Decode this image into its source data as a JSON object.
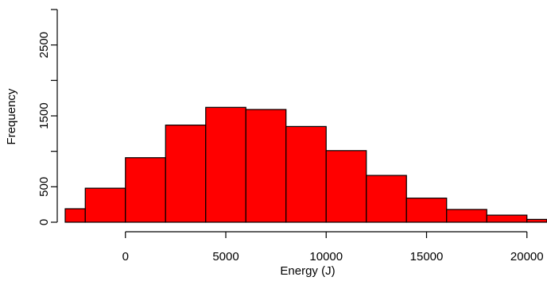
{
  "chart_data": {
    "type": "bar",
    "title": "",
    "xlabel": "Energy (J)",
    "ylabel": "Frequency",
    "bin_edges": [
      -3000,
      -2000,
      0,
      2000,
      4000,
      6000,
      8000,
      10000,
      12000,
      14000,
      16000,
      18000,
      20000,
      21000
    ],
    "values": [
      190,
      480,
      910,
      1370,
      1620,
      1590,
      1350,
      1010,
      660,
      340,
      180,
      100,
      40
    ],
    "xlim": [
      -3000,
      21000
    ],
    "ylim": [
      0,
      3000
    ],
    "x_ticks": [
      0,
      5000,
      10000,
      15000,
      20000
    ],
    "x_tick_labels": [
      "0",
      "5000",
      "10000",
      "15000",
      "20000"
    ],
    "y_ticks": [
      0,
      500,
      1000,
      1500,
      2000,
      2500,
      3000
    ],
    "y_tick_labels": [
      "0",
      "500",
      "1500",
      "2500"
    ],
    "y_tick_label_values": [
      0,
      500,
      1500,
      2500
    ],
    "bar_color": "#ff0000",
    "edge_color": "#000000",
    "grid": false
  }
}
